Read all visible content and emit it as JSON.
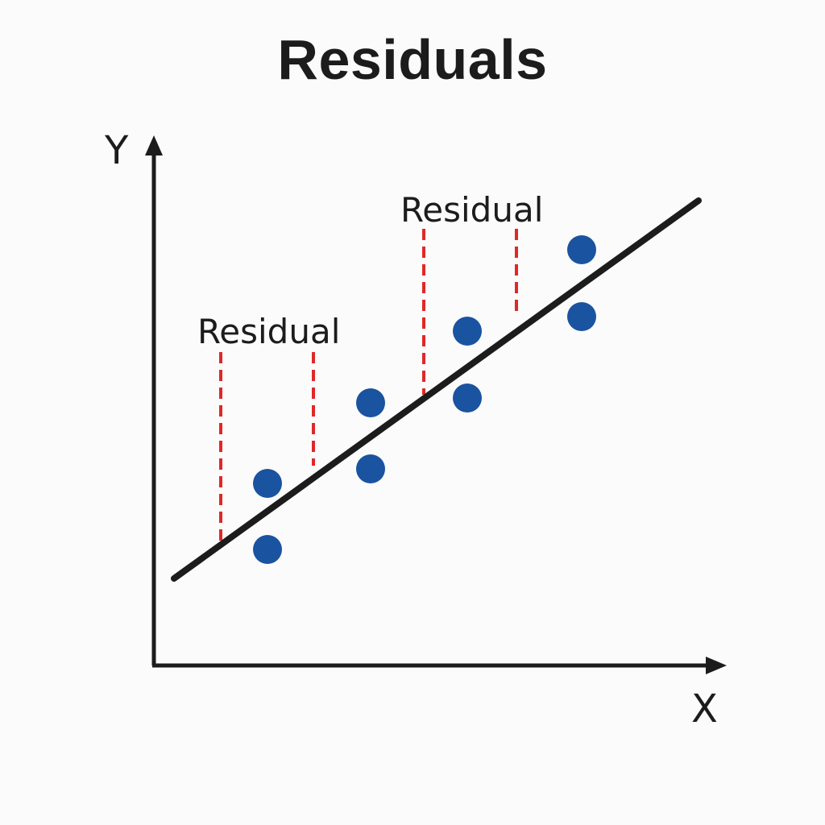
{
  "title": "Residuals",
  "x_label": "X",
  "y_label": "Y",
  "residual_labels": [
    "Residual",
    "Residual"
  ],
  "colors": {
    "point": "#1a53a0",
    "line": "#1c1c1c",
    "residual": "#e02828",
    "axis": "#1c1c1c"
  }
}
